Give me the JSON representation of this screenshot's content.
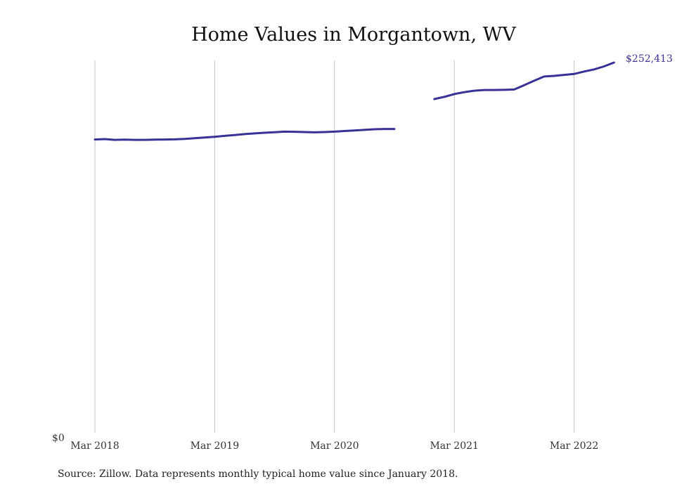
{
  "chart_data": {
    "type": "line",
    "title": "Home Values in Morgantown, WV",
    "xlabel": "",
    "ylabel": "",
    "x_ticks": [
      "Mar 2018",
      "Mar 2019",
      "Mar 2020",
      "Mar 2021",
      "Mar 2022"
    ],
    "y_tick_labels": [
      "$0"
    ],
    "ylim": [
      0,
      252413
    ],
    "grid": "vertical",
    "line_color": "#3a3196",
    "end_label": "$252,413",
    "series": [
      {
        "segments": [
          {
            "x": [
              "2018-03",
              "2018-04",
              "2018-05",
              "2018-06",
              "2018-07",
              "2018-08",
              "2018-09",
              "2018-10",
              "2018-11",
              "2018-12",
              "2019-01",
              "2019-02",
              "2019-03",
              "2019-04",
              "2019-05",
              "2019-06",
              "2019-07",
              "2019-08",
              "2019-09",
              "2019-10",
              "2019-11",
              "2019-12",
              "2020-01",
              "2020-02",
              "2020-03",
              "2020-04",
              "2020-05",
              "2020-06",
              "2020-07",
              "2020-08",
              "2020-09"
            ],
            "y": [
              199900,
              200200,
              199700,
              199800,
              199700,
              199700,
              199800,
              199900,
              200000,
              200300,
              200800,
              201300,
              201800,
              202400,
              203000,
              203600,
              204100,
              204500,
              204900,
              205300,
              205200,
              205000,
              204800,
              205000,
              205300,
              205700,
              206100,
              206500,
              206900,
              207100,
              207100
            ]
          },
          {
            "x": [
              "2021-01",
              "2021-02",
              "2021-03",
              "2021-04",
              "2021-05",
              "2021-06",
              "2021-07",
              "2021-08",
              "2021-09",
              "2021-10",
              "2021-11",
              "2021-12",
              "2022-01",
              "2022-02",
              "2022-03",
              "2022-04",
              "2022-05",
              "2022-06",
              "2022-07"
            ],
            "y": [
              227500,
              229000,
              230900,
              232200,
              233200,
              233700,
              233700,
              233800,
              234000,
              237000,
              240000,
              242900,
              243300,
              244000,
              244600,
              246300,
              247700,
              249800,
              252413
            ]
          }
        ]
      }
    ]
  },
  "footer": {
    "source": "Source: Zillow. Data represents monthly typical home value since January 2018."
  }
}
